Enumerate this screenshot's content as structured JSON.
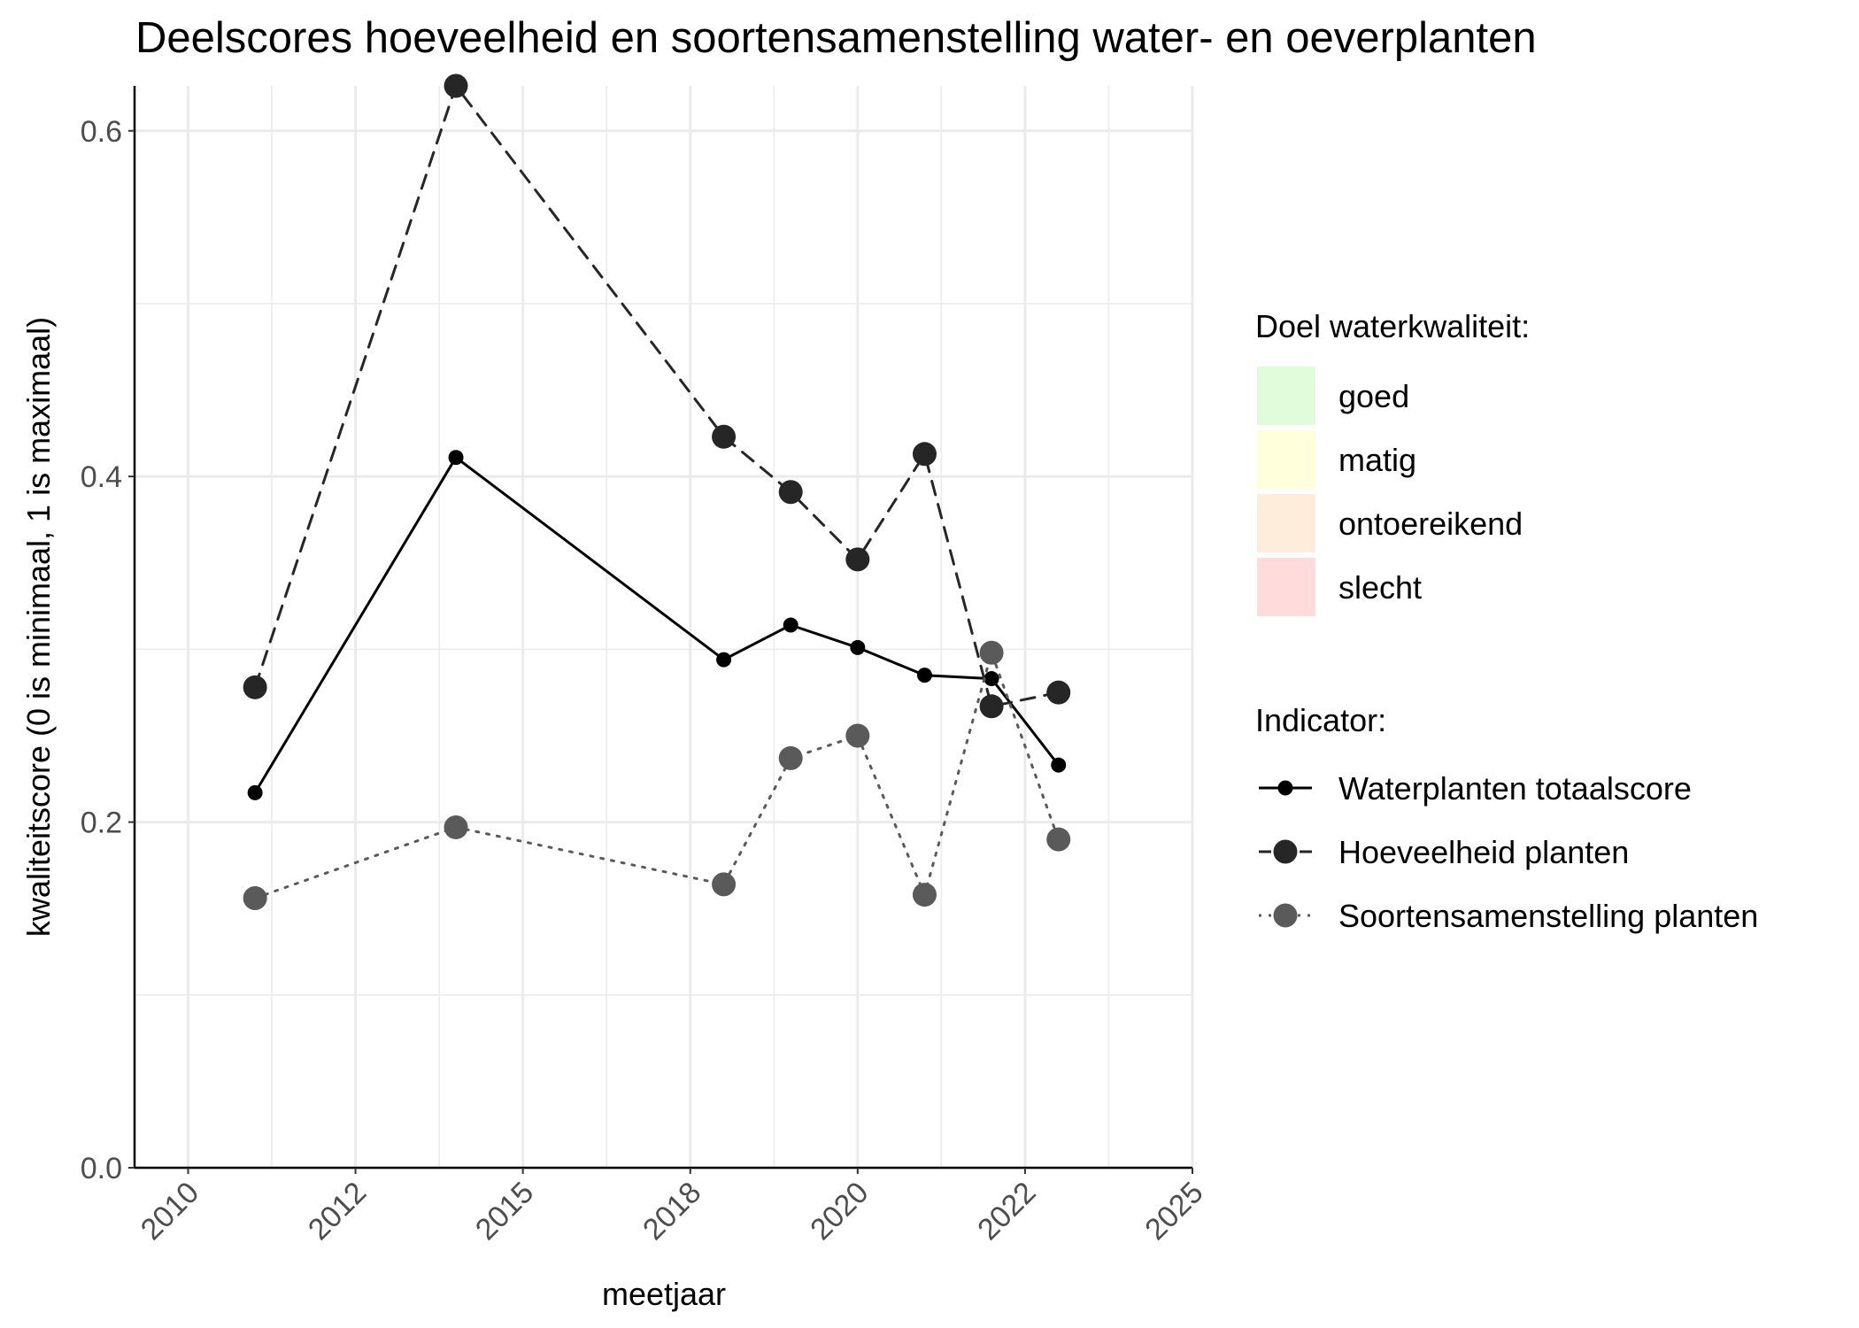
{
  "chart_data": {
    "type": "line",
    "title": "Deelscores hoeveelheid en soortensamenstelling water- en oeverplanten",
    "xlabel": "meetjaar",
    "ylabel": "kwaliteitscore (0 is minimaal, 1 is maximaal)",
    "xlim": [
      2009.2,
      2025
    ],
    "ylim": [
      0,
      0.626
    ],
    "x_ticks": [
      {
        "value": 2010,
        "label": "2010"
      },
      {
        "value": 2012.5,
        "label": "2012"
      },
      {
        "value": 2015,
        "label": "2015"
      },
      {
        "value": 2017.5,
        "label": "2018"
      },
      {
        "value": 2020,
        "label": "2020"
      },
      {
        "value": 2022.5,
        "label": "2022"
      },
      {
        "value": 2025,
        "label": "2025"
      }
    ],
    "y_ticks": [
      {
        "value": 0.0,
        "label": "0.0"
      },
      {
        "value": 0.2,
        "label": "0.2"
      },
      {
        "value": 0.4,
        "label": "0.4"
      },
      {
        "value": 0.6,
        "label": "0.6"
      }
    ],
    "grid": true,
    "series": [
      {
        "name": "Waterplanten totaalscore",
        "color": "#000000",
        "line_style": "solid",
        "marker": "small",
        "x": [
          2011,
          2014,
          2018,
          2019,
          2020,
          2021,
          2022,
          2023
        ],
        "y": [
          0.217,
          0.411,
          0.294,
          0.314,
          0.301,
          0.285,
          0.283,
          0.233
        ]
      },
      {
        "name": "Hoeveelheid planten",
        "color": "#262626",
        "line_style": "dashed",
        "marker": "large",
        "x": [
          2011,
          2014,
          2018,
          2019,
          2020,
          2021,
          2022,
          2023
        ],
        "y": [
          0.278,
          0.626,
          0.423,
          0.391,
          0.352,
          0.413,
          0.267,
          0.275
        ]
      },
      {
        "name": "Soortensamenstelling planten",
        "color": "#5a5a5a",
        "line_style": "dotted",
        "marker": "large",
        "x": [
          2011,
          2014,
          2018,
          2019,
          2020,
          2021,
          2022,
          2023
        ],
        "y": [
          0.156,
          0.197,
          0.164,
          0.237,
          0.25,
          0.158,
          0.298,
          0.19
        ]
      }
    ],
    "target_legend": {
      "title": "Doel waterkwaliteit:",
      "items": [
        {
          "label": "goed",
          "color": "#e1fcda"
        },
        {
          "label": "matig",
          "color": "#ffffdb"
        },
        {
          "label": "ontoereikend",
          "color": "#ffeddb"
        },
        {
          "label": "slecht",
          "color": "#ffdbdb"
        }
      ]
    },
    "indicator_legend": {
      "title": "Indicator:"
    },
    "legend_position": "right"
  }
}
